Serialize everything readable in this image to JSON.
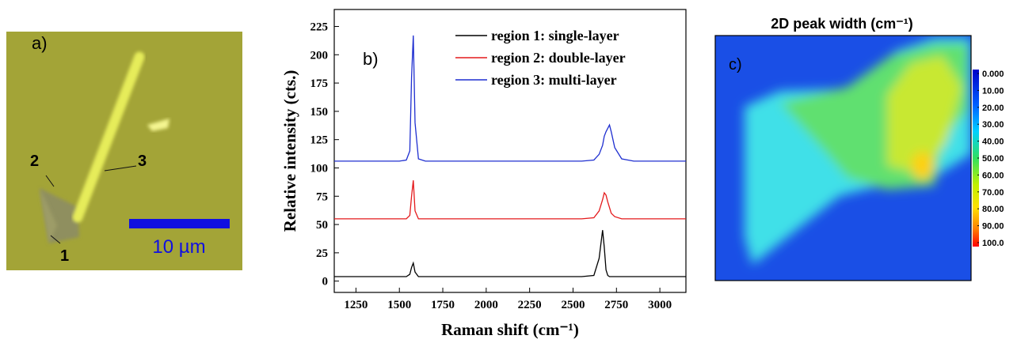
{
  "panel_a": {
    "label": "a)",
    "points": [
      "1",
      "2",
      "3"
    ],
    "scale_bar": "10 µm"
  },
  "chart_data": {
    "type": "line",
    "panel_label": "b)",
    "xlabel": "Raman shift (cm⁻¹)",
    "ylabel": "Relative intensity (cts.)",
    "x": [
      1125,
      1200,
      1300,
      1400,
      1500,
      1540,
      1560,
      1570,
      1580,
      1590,
      1610,
      1650,
      1750,
      1850,
      1950,
      2050,
      2150,
      2250,
      2350,
      2450,
      2550,
      2620,
      2650,
      2670,
      2680,
      2690,
      2700,
      2710,
      2720,
      2740,
      2780,
      2850,
      2950,
      3050,
      3150
    ],
    "series": [
      {
        "name": "region 1: single-layer",
        "color": "#000000",
        "values": [
          4,
          4,
          4,
          4,
          4,
          4,
          6,
          12,
          16,
          8,
          4,
          4,
          4,
          4,
          4,
          4,
          4,
          4,
          4,
          4,
          4,
          5,
          20,
          45,
          30,
          10,
          5,
          4,
          4,
          4,
          4,
          4,
          4,
          4,
          4
        ]
      },
      {
        "name": "region 2: double-layer",
        "color": "#e41a1c",
        "values": [
          55,
          55,
          55,
          55,
          55,
          55,
          58,
          75,
          89,
          62,
          55,
          55,
          55,
          55,
          55,
          55,
          55,
          55,
          55,
          55,
          55,
          56,
          62,
          72,
          78,
          76,
          70,
          65,
          60,
          57,
          55,
          55,
          55,
          55,
          55
        ]
      },
      {
        "name": "region 3: multi-layer",
        "color": "#1f2fd0",
        "values": [
          106,
          106,
          106,
          106,
          106,
          107,
          115,
          180,
          217,
          140,
          108,
          106,
          106,
          106,
          106,
          106,
          106,
          106,
          106,
          106,
          106,
          107,
          112,
          120,
          128,
          132,
          135,
          138,
          132,
          118,
          108,
          106,
          106,
          106,
          106
        ]
      }
    ],
    "xlim": [
      1125,
      3150
    ],
    "xticks": [
      1250,
      1500,
      1750,
      2000,
      2250,
      2500,
      2750,
      3000
    ],
    "ylim": [
      -10,
      240
    ],
    "yticks": [
      0,
      25,
      50,
      75,
      100,
      125,
      150,
      175,
      200,
      225
    ],
    "grid": false,
    "legend": "upper right"
  },
  "panel_c": {
    "label": "c)",
    "title": "2D peak width (cm⁻¹)",
    "colorbar_range": [
      0,
      100
    ],
    "colorbar_ticks": [
      {
        "value": 0,
        "label": "0.000"
      },
      {
        "value": 10,
        "label": "10.00"
      },
      {
        "value": 20,
        "label": "20.00"
      },
      {
        "value": 30,
        "label": "30.00"
      },
      {
        "value": 40,
        "label": "40.00"
      },
      {
        "value": 50,
        "label": "50.00"
      },
      {
        "value": 60,
        "label": "60.00"
      },
      {
        "value": 70,
        "label": "70.00"
      },
      {
        "value": 80,
        "label": "80.00"
      },
      {
        "value": 90,
        "label": "90.00"
      },
      {
        "value": 100,
        "label": "100.0"
      }
    ]
  }
}
